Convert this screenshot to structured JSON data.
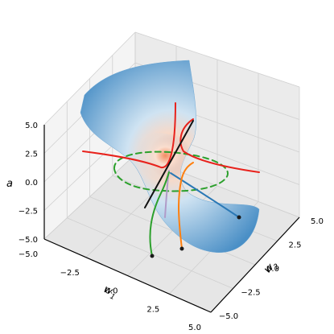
{
  "chart_data": {
    "type": "surface3d",
    "title": "",
    "axes": {
      "x": {
        "label": "w",
        "label_sub": "1",
        "ticks": [
          "−5.0",
          "−2.5",
          "0.0",
          "2.5",
          "5.0"
        ],
        "range": [
          -5,
          5
        ]
      },
      "y": {
        "label": "w",
        "label_sub": "2",
        "ticks": [
          "−5.0",
          "−2.5",
          "0.0",
          "2.5",
          "5.0"
        ],
        "range": [
          -5,
          5
        ]
      },
      "z": {
        "label": "a",
        "ticks": [
          "−5.0",
          "−2.5",
          "0.0",
          "2.5",
          "5.0"
        ],
        "range": [
          -5,
          5
        ]
      }
    },
    "grid": true,
    "surface": {
      "shape": "hyperboloid",
      "colormap": "blue-white-red",
      "colors": {
        "edge": "#4a8fc6",
        "mid": "#cfe3f2",
        "hot": "#f0906a"
      }
    },
    "curves": [
      {
        "name": "red hyperbola",
        "color": "#e8221c",
        "style": "solid"
      },
      {
        "name": "black line",
        "color": "#111111",
        "style": "solid"
      },
      {
        "name": "blue trajectory",
        "color": "#2a78b5",
        "style": "solid"
      },
      {
        "name": "orange trajectory",
        "color": "#ff7f0e",
        "style": "solid"
      },
      {
        "name": "green trajectory",
        "color": "#2ca02c",
        "style": "solid"
      },
      {
        "name": "green circle",
        "color": "#2ca02c",
        "style": "dashed"
      }
    ]
  }
}
